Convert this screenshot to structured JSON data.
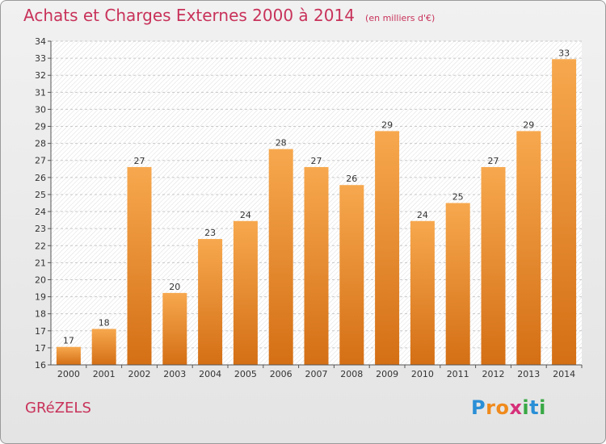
{
  "header": {
    "title": "Achats et Charges Externes 2000 à 2014",
    "subtitle": "(en milliers d'€)"
  },
  "footer": {
    "commune": "GRéZELS",
    "logo": {
      "letters": [
        "P",
        "r",
        "o",
        "x",
        "i",
        "t",
        "i"
      ],
      "colors": [
        "#2a8fd6",
        "#f08a1c",
        "#f08a1c",
        "#d6307a",
        "#39a845",
        "#2a8fd6",
        "#39a845"
      ]
    }
  },
  "colors": {
    "accent": "#c8325a",
    "bar_light": "#f7a84e",
    "bar_dark": "#d46f15"
  },
  "chart_data": {
    "type": "bar",
    "title": "Achats et Charges Externes 2000 à 2014",
    "subtitle": "(en milliers d'€)",
    "categories": [
      "2000",
      "2001",
      "2002",
      "2003",
      "2004",
      "2005",
      "2006",
      "2007",
      "2008",
      "2009",
      "2010",
      "2011",
      "2012",
      "2013",
      "2014"
    ],
    "values": [
      17,
      18,
      27,
      20,
      23,
      24,
      28,
      27,
      26,
      29,
      24,
      25,
      27,
      29,
      33
    ],
    "ylim": [
      16,
      34
    ],
    "yticks": [
      "16",
      "17",
      "17",
      "18",
      "19",
      "20",
      "21",
      "22",
      "23",
      "24",
      "25",
      "26",
      "27",
      "28",
      "29",
      "30",
      "31",
      "32",
      "33",
      "34"
    ],
    "grid": true,
    "xlabel": "",
    "ylabel": ""
  }
}
